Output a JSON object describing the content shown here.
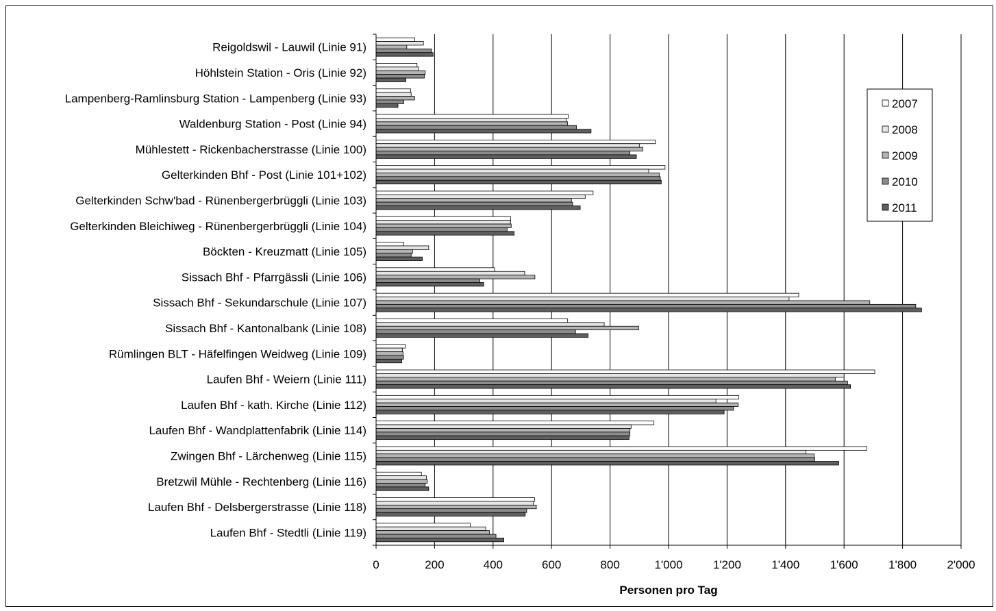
{
  "chart_data": {
    "type": "bar",
    "orientation": "horizontal",
    "xlabel": "Personen pro Tag",
    "ylabel": "",
    "xlim": [
      0,
      2000
    ],
    "x_ticks": [
      0,
      200,
      400,
      600,
      800,
      1000,
      1200,
      1400,
      1600,
      1800,
      2000
    ],
    "x_tick_labels": [
      "0",
      "200",
      "400",
      "600",
      "800",
      "1'000",
      "1'200",
      "1'400",
      "1'600",
      "1'800",
      "2'000"
    ],
    "grid": "vertical major gridlines",
    "legend_position": "right",
    "categories": [
      "Reigoldswil - Lauwil (Linie 91)",
      "Höhlstein Station - Oris (Linie 92)",
      "Lampenberg-Ramlinsburg Station - Lampenberg (Linie 93)",
      "Waldenburg Station - Post (Linie 94)",
      "Mühlestett - Rickenbacherstrasse (Linie 100)",
      "Gelterkinden Bhf - Post (Linie 101+102)",
      "Gelterkinden Schw'bad - Rünenbergerbrüggli (Linie 103)",
      "Gelterkinden Bleichiweg - Rünenbergerbrüggli (Linie 104)",
      "Böckten - Kreuzmatt (Linie 105)",
      "Sissach Bhf - Pfarrgässli (Linie 106)",
      "Sissach Bhf - Sekundarschule (Linie 107)",
      "Sissach Bhf - Kantonalbank (Linie 108)",
      "Rümlingen BLT - Häfelfingen Weidweg (Linie 109)",
      "Laufen Bhf - Weiern (Linie 111)",
      "Laufen Bhf - kath. Kirche (Linie 112)",
      "Laufen Bhf - Wandplattenfabrik (Linie 114)",
      "Zwingen Bhf - Lärchenweg (Linie 115)",
      "Bretzwil Mühle - Rechtenberg (Linie 116)",
      "Laufen Bhf - Delsbergerstrasse (Linie 118)",
      "Laufen Bhf - Stedtli (Linie 119)"
    ],
    "series": [
      {
        "name": "2007",
        "color": "#ffffff",
        "values": [
          132,
          140,
          118,
          657,
          955,
          988,
          742,
          460,
          95,
          405,
          1445,
          655,
          100,
          1705,
          1240,
          950,
          1678,
          155,
          542,
          322
        ]
      },
      {
        "name": "2008",
        "color": "#e6e6e6",
        "values": [
          162,
          145,
          120,
          650,
          900,
          932,
          715,
          460,
          180,
          508,
          1412,
          780,
          90,
          1600,
          1162,
          872,
          1470,
          172,
          538,
          375
        ]
      },
      {
        "name": "2009",
        "color": "#b4b4b4",
        "values": [
          105,
          168,
          132,
          655,
          912,
          968,
          668,
          462,
          125,
          543,
          1688,
          898,
          92,
          1570,
          1238,
          868,
          1498,
          175,
          548,
          388
        ]
      },
      {
        "name": "2010",
        "color": "#8c8c8c",
        "values": [
          190,
          165,
          95,
          685,
          868,
          972,
          672,
          448,
          120,
          355,
          1845,
          682,
          94,
          1612,
          1222,
          868,
          1500,
          168,
          515,
          410
        ]
      },
      {
        "name": "2011",
        "color": "#5f5f5f",
        "values": [
          195,
          102,
          75,
          735,
          890,
          975,
          698,
          472,
          158,
          368,
          1865,
          725,
          88,
          1622,
          1190,
          865,
          1582,
          180,
          510,
          437
        ]
      }
    ]
  }
}
